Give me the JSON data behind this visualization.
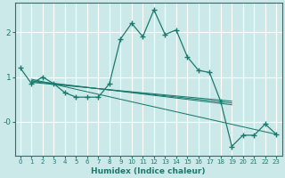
{
  "xlabel": "Humidex (Indice chaleur)",
  "bg_color": "#cce9e9",
  "line_color": "#1a7a6e",
  "grid_color": "#ffffff",
  "xlim": [
    -0.5,
    23.5
  ],
  "ylim": [
    -0.75,
    2.65
  ],
  "main_x": [
    0,
    1,
    2,
    3,
    4,
    5,
    6,
    7,
    8,
    9,
    10,
    11,
    12,
    13,
    14,
    15,
    16,
    17,
    18,
    19,
    20,
    21,
    22,
    23
  ],
  "main_y": [
    1.2,
    0.85,
    1.0,
    0.85,
    0.65,
    0.55,
    0.55,
    0.55,
    0.85,
    1.85,
    2.2,
    1.9,
    2.5,
    1.95,
    2.05,
    1.45,
    1.15,
    1.1,
    0.45,
    -0.55,
    -0.3,
    -0.3,
    -0.05,
    -0.28
  ],
  "trend_lines": [
    {
      "x": [
        1,
        23
      ],
      "y": [
        0.95,
        -0.28
      ]
    },
    {
      "x": [
        1,
        19
      ],
      "y": [
        0.92,
        0.38
      ]
    },
    {
      "x": [
        1,
        19
      ],
      "y": [
        0.9,
        0.42
      ]
    },
    {
      "x": [
        1,
        19
      ],
      "y": [
        0.88,
        0.46
      ]
    }
  ],
  "xticks": [
    0,
    1,
    2,
    3,
    4,
    5,
    6,
    7,
    8,
    9,
    10,
    11,
    12,
    13,
    14,
    15,
    16,
    17,
    18,
    19,
    20,
    21,
    22,
    23
  ],
  "yticks": [
    0.0,
    1.0,
    2.0
  ],
  "ytick_labels": [
    "-0",
    "1",
    "2"
  ]
}
